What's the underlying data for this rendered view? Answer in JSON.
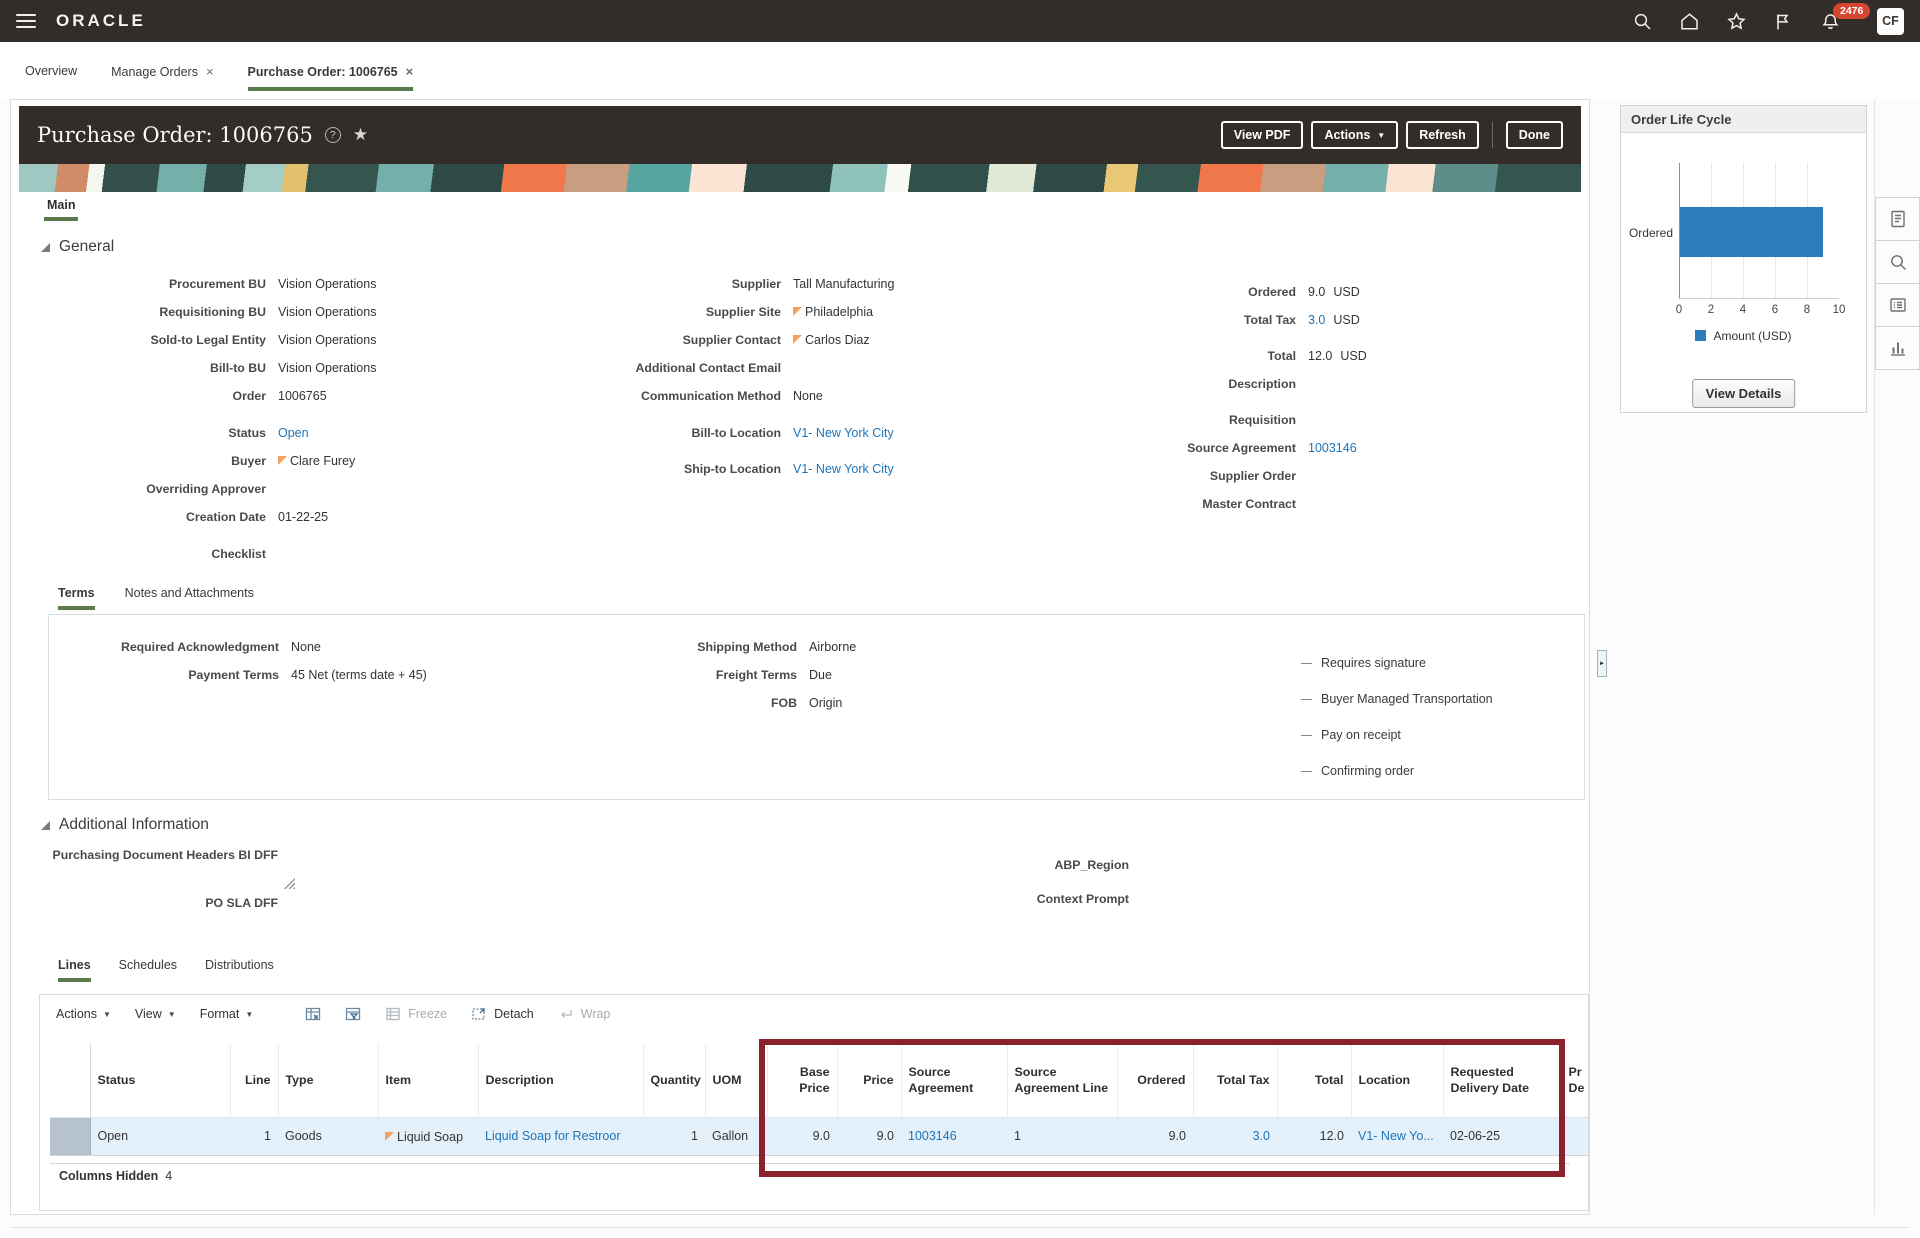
{
  "topbar": {
    "brand": "ORACLE",
    "badge_count": "2476",
    "avatar_initials": "CF"
  },
  "icons": {
    "close": "×",
    "caret": "▼",
    "help": "?",
    "star": "★",
    "splitter_arrow": "►"
  },
  "page_tabs": [
    {
      "label": "Overview"
    },
    {
      "label": "Manage Orders"
    },
    {
      "label": "Purchase Order: 1006765"
    }
  ],
  "po_header": {
    "title": "Purchase Order: 1006765",
    "view_pdf": "View PDF",
    "actions": "Actions",
    "refresh": "Refresh",
    "done": "Done"
  },
  "main_tab": "Main",
  "general": {
    "title": "General",
    "col1": [
      {
        "label": "Procurement BU",
        "value": "Vision Operations"
      },
      {
        "label": "Requisitioning BU",
        "value": "Vision Operations"
      },
      {
        "label": "Sold-to Legal Entity",
        "value": "Vision Operations"
      },
      {
        "label": "Bill-to BU",
        "value": "Vision Operations"
      },
      {
        "label": "Order",
        "value": "1006765"
      },
      {
        "label": "Status",
        "value": "Open"
      },
      {
        "label": "Buyer",
        "value": "Clare Furey"
      },
      {
        "label": "Overriding Approver",
        "value": ""
      },
      {
        "label": "Creation Date",
        "value": "01-22-25"
      },
      {
        "label": "Checklist",
        "value": ""
      }
    ],
    "col2": [
      {
        "label": "Supplier",
        "value": "Tall Manufacturing"
      },
      {
        "label": "Supplier Site",
        "value": "Philadelphia"
      },
      {
        "label": "Supplier Contact",
        "value": "Carlos Diaz"
      },
      {
        "label": "Additional Contact Email",
        "value": ""
      },
      {
        "label": "Communication Method",
        "value": "None"
      },
      {
        "label": "Bill-to Location",
        "value": "V1- New York City"
      },
      {
        "label": "Ship-to Location",
        "value": "V1- New York City"
      }
    ],
    "col3": [
      {
        "label": "Ordered",
        "value": "9.0",
        "suffix": "USD"
      },
      {
        "label": "Total Tax",
        "value": "3.0",
        "suffix": "USD"
      },
      {
        "label": "Total",
        "value": "12.0",
        "suffix": "USD"
      },
      {
        "label": "Description",
        "value": ""
      },
      {
        "label": "Requisition",
        "value": ""
      },
      {
        "label": "Source Agreement",
        "value": "1003146"
      },
      {
        "label": "Supplier Order",
        "value": ""
      },
      {
        "label": "Master Contract",
        "value": ""
      }
    ]
  },
  "terms": {
    "tab_terms": "Terms",
    "tab_notes": "Notes and Attachments",
    "col1": [
      {
        "label": "Required Acknowledgment",
        "value": "None"
      },
      {
        "label": "Payment Terms",
        "value": "45 Net (terms date + 45)"
      }
    ],
    "col2": [
      {
        "label": "Shipping Method",
        "value": "Airborne"
      },
      {
        "label": "Freight Terms",
        "value": "Due"
      },
      {
        "label": "FOB",
        "value": "Origin"
      }
    ],
    "flags": [
      "Requires signature",
      "Buyer Managed Transportation",
      "Pay on receipt",
      "Confirming order"
    ]
  },
  "additional_information": {
    "title": "Additional Information",
    "label1": "Purchasing Document Headers BI DFF",
    "label2": "PO SLA DFF",
    "label3": "ABP_Region",
    "label4": "Context Prompt"
  },
  "lines": {
    "tab_lines": "Lines",
    "tab_schedules": "Schedules",
    "tab_distributions": "Distributions",
    "toolbar": {
      "actions": "Actions",
      "view": "View",
      "format": "Format",
      "freeze": "Freeze",
      "detach": "Detach",
      "wrap": "Wrap"
    },
    "columns": {
      "status": "Status",
      "line": "Line",
      "type": "Type",
      "item": "Item",
      "description": "Description",
      "quantity": "Quantity",
      "uom": "UOM",
      "base_price": "Base Price",
      "price": "Price",
      "source_agreement": "Source Agreement",
      "source_agreement_line": "Source Agreement Line",
      "ordered": "Ordered",
      "total_tax": "Total Tax",
      "total": "Total",
      "location": "Location",
      "requested_delivery_date": "Requested Delivery Date",
      "cut_line1": "Pr",
      "cut_line2": "De"
    },
    "row": {
      "status": "Open",
      "line": "1",
      "type": "Goods",
      "item": "Liquid Soap",
      "description": "Liquid Soap for Restroor",
      "quantity": "1",
      "uom": "Gallon",
      "base_price": "9.0",
      "price": "9.0",
      "source_agreement": "1003146",
      "source_agreement_line": "1",
      "ordered": "9.0",
      "total_tax": "3.0",
      "total": "12.0",
      "location": "V1- New Yo...",
      "requested_delivery_date": "02-06-25"
    },
    "columns_hidden_label": "Columns Hidden",
    "columns_hidden_count": "4"
  },
  "order_life_cycle": {
    "title": "Order Life Cycle",
    "view_details": "View Details",
    "chart_data": {
      "type": "bar",
      "orientation": "horizontal",
      "title": "Order Life Cycle",
      "categories": [
        "Ordered"
      ],
      "series": [
        {
          "name": "Amount (USD)",
          "values": [
            9.0
          ]
        }
      ],
      "xlim": [
        0,
        10
      ],
      "xticks": [
        0,
        2,
        4,
        6,
        8,
        10
      ],
      "legend_position": "bottom",
      "grid": true
    }
  },
  "colors": {
    "topbar_bg": "#322d29",
    "link_blue": "#1d74b8",
    "active_tab_green": "#5b7a4b",
    "highlight_box_red": "#8c212e",
    "chart_bar_blue": "#2b7cb8",
    "badge_red": "#d6452f",
    "selected_row_blue": "#e4f0fa",
    "flag_orange": "#f5a15e"
  }
}
